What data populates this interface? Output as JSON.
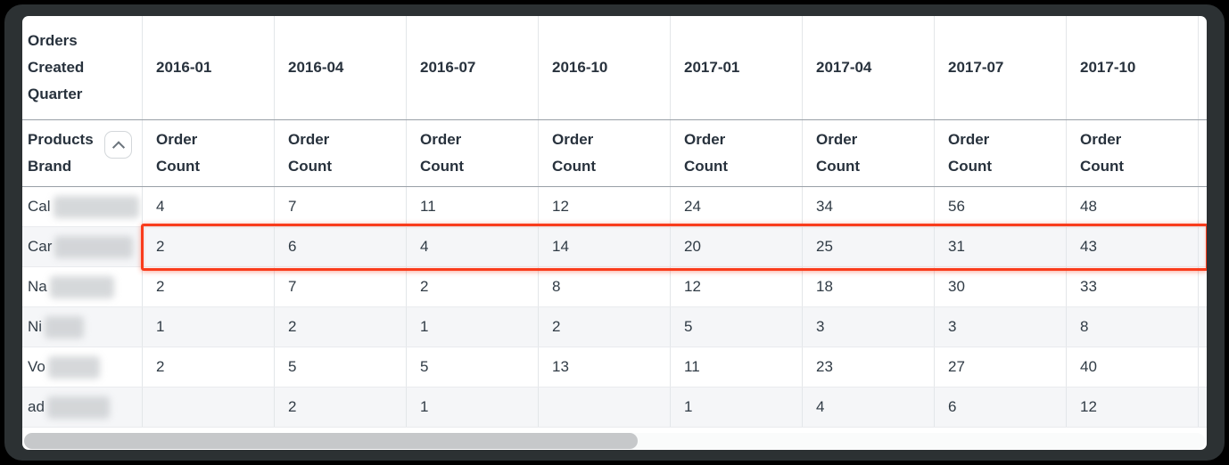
{
  "table": {
    "corner_header": "Orders Created Quarter",
    "row_header": {
      "label": "Products Brand",
      "collapse_icon": "chevron-up-icon"
    },
    "value_label": "Order Count",
    "quarter_headers": [
      "2016-01",
      "2016-04",
      "2016-07",
      "2016-10",
      "2017-01",
      "2017-04",
      "2017-07",
      "2017-10"
    ],
    "rows": [
      {
        "brand_prefix": "Cal",
        "redacted": true,
        "redact_width": 96,
        "highlighted": false,
        "values": [
          "4",
          "7",
          "11",
          "12",
          "24",
          "34",
          "56",
          "48"
        ]
      },
      {
        "brand_prefix": "Car",
        "redacted": true,
        "redact_width": 88,
        "highlighted": true,
        "values": [
          "2",
          "6",
          "4",
          "14",
          "20",
          "25",
          "31",
          "43"
        ]
      },
      {
        "brand_prefix": "Na",
        "redacted": true,
        "redact_width": 72,
        "highlighted": false,
        "values": [
          "2",
          "7",
          "2",
          "8",
          "12",
          "18",
          "30",
          "33"
        ]
      },
      {
        "brand_prefix": "Ni",
        "redacted": true,
        "redact_width": 44,
        "highlighted": false,
        "values": [
          "1",
          "2",
          "1",
          "2",
          "5",
          "3",
          "3",
          "8"
        ]
      },
      {
        "brand_prefix": "Vo",
        "redacted": true,
        "redact_width": 58,
        "highlighted": false,
        "values": [
          "2",
          "5",
          "5",
          "13",
          "11",
          "23",
          "27",
          "40"
        ]
      },
      {
        "brand_prefix": "ad",
        "redacted": true,
        "redact_width": 70,
        "highlighted": false,
        "values": [
          "",
          "2",
          "1",
          "",
          "1",
          "4",
          "6",
          "12"
        ]
      }
    ],
    "colors": {
      "highlight_border": "#f93c1c",
      "header_separator": "#99a0a7",
      "cell_border": "#e3e6e9",
      "alt_row_bg": "#f5f6f8",
      "header_text": "#28323d",
      "cell_text": "#303b45",
      "frame_bg": "#2c3133"
    }
  },
  "scrollbar": {
    "orientation": "horizontal",
    "thumb_position": "left"
  }
}
